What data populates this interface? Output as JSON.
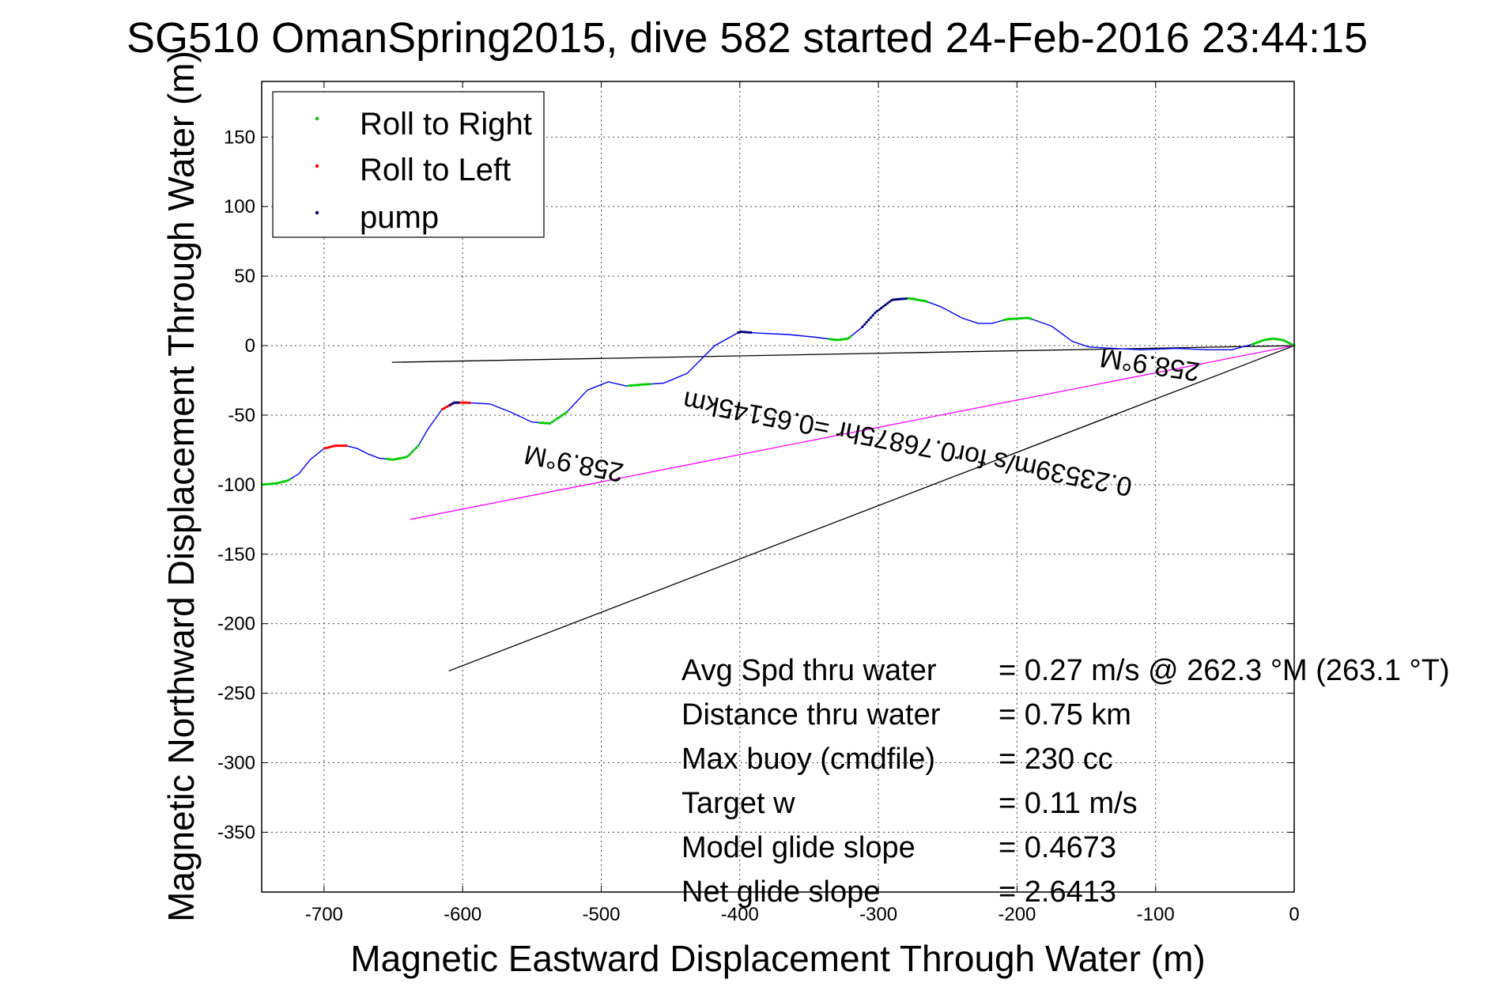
{
  "chart_data": {
    "type": "line",
    "title": "SG510 OmanSpring2015, dive 582 started 24-Feb-2016 23:44:15",
    "xlabel": "Magnetic Eastward Displacement Through Water (m)",
    "ylabel": "Magnetic Northward Displacement Through Water (m)",
    "xlim": [
      -745,
      0
    ],
    "ylim": [
      -393,
      190
    ],
    "xticks": [
      -700,
      -600,
      -500,
      -400,
      -300,
      -200,
      -100,
      0
    ],
    "yticks": [
      150,
      100,
      50,
      0,
      -50,
      -100,
      -150,
      -200,
      -250,
      -300,
      -350
    ],
    "grid": true,
    "legend": {
      "position": "top-left",
      "entries": [
        {
          "label": "Roll to Right",
          "color": "#00cc00"
        },
        {
          "label": "Roll to Left",
          "color": "#ff0000"
        },
        {
          "label": "pump",
          "color": "#000080"
        }
      ]
    },
    "colors": {
      "track": "#0000ff",
      "magenta_line": "#ff00ff",
      "black_line": "#000000"
    },
    "track": {
      "x": [
        0,
        -8,
        -15,
        -22,
        -30,
        -45,
        -62,
        -85,
        -110,
        -130,
        -148,
        -160,
        -175,
        -192,
        -207,
        -218,
        -228,
        -240,
        -255,
        -266,
        -278,
        -290,
        -302,
        -312,
        -322,
        -330,
        -345,
        -365,
        -387,
        -400,
        -418,
        -438,
        -455,
        -470,
        -482,
        -495,
        -510,
        -525,
        -537,
        -550,
        -565,
        -580,
        -598,
        -606,
        -615,
        -625,
        -632,
        -640,
        -650,
        -660,
        -668,
        -676,
        -684,
        -692,
        -700,
        -710,
        -718,
        -726,
        -734,
        -745
      ],
      "y": [
        0,
        4,
        5,
        4,
        1,
        -3,
        -3,
        -2,
        -3,
        -2,
        -1,
        3,
        14,
        20,
        19,
        16,
        16,
        20,
        28,
        32,
        34,
        33,
        24,
        13,
        5,
        4,
        6,
        8,
        9,
        10,
        0,
        -20,
        -27,
        -28,
        -29,
        -26,
        -32,
        -48,
        -56,
        -55,
        -48,
        -42,
        -41,
        -41,
        -46,
        -60,
        -72,
        -80,
        -82,
        -81,
        -78,
        -74,
        -72,
        -72,
        -74,
        -82,
        -92,
        -97,
        -99,
        -100
      ],
      "roll_right_ranges": [
        [
          0,
          30
        ],
        [
          190,
          210
        ],
        [
          265,
          290
        ],
        [
          320,
          335
        ],
        [
          465,
          480
        ],
        [
          525,
          545
        ],
        [
          632,
          655
        ],
        [
          725,
          745
        ]
      ],
      "roll_left_ranges": [
        [
          595,
          615
        ],
        [
          684,
          700
        ]
      ],
      "pump_ranges": [
        [
          280,
          312
        ],
        [
          392,
          402
        ],
        [
          603,
          610
        ]
      ]
    },
    "lines": [
      {
        "name": "black_near_horizontal",
        "x": [
          0,
          -651
        ],
        "y": [
          0,
          -12
        ]
      },
      {
        "name": "magenta",
        "x": [
          0,
          -638
        ],
        "y": [
          0,
          -125
        ]
      },
      {
        "name": "black_steep",
        "x": [
          0,
          -610
        ],
        "y": [
          0,
          -234
        ]
      }
    ],
    "annotations": {
      "heading_upper": "258.9°M",
      "heading_lower": "258.9°M",
      "rotated_speed": "0.23539m/s for0.76875hr =0.65145km"
    },
    "stats": [
      {
        "label": "Avg Spd thru water",
        "value": "=  0.27 m/s @ 262.3 °M (263.1 °T)"
      },
      {
        "label": "Distance thru water",
        "value": "=  0.75 km"
      },
      {
        "label": "Max buoy (cmdfile)",
        "value": "= 230 cc"
      },
      {
        "label": "Target w",
        "value": "= 0.11 m/s"
      },
      {
        "label": "Model glide slope",
        "value": "= 0.4673"
      },
      {
        "label": "Net glide slope",
        "value": "= 2.6413"
      }
    ]
  }
}
